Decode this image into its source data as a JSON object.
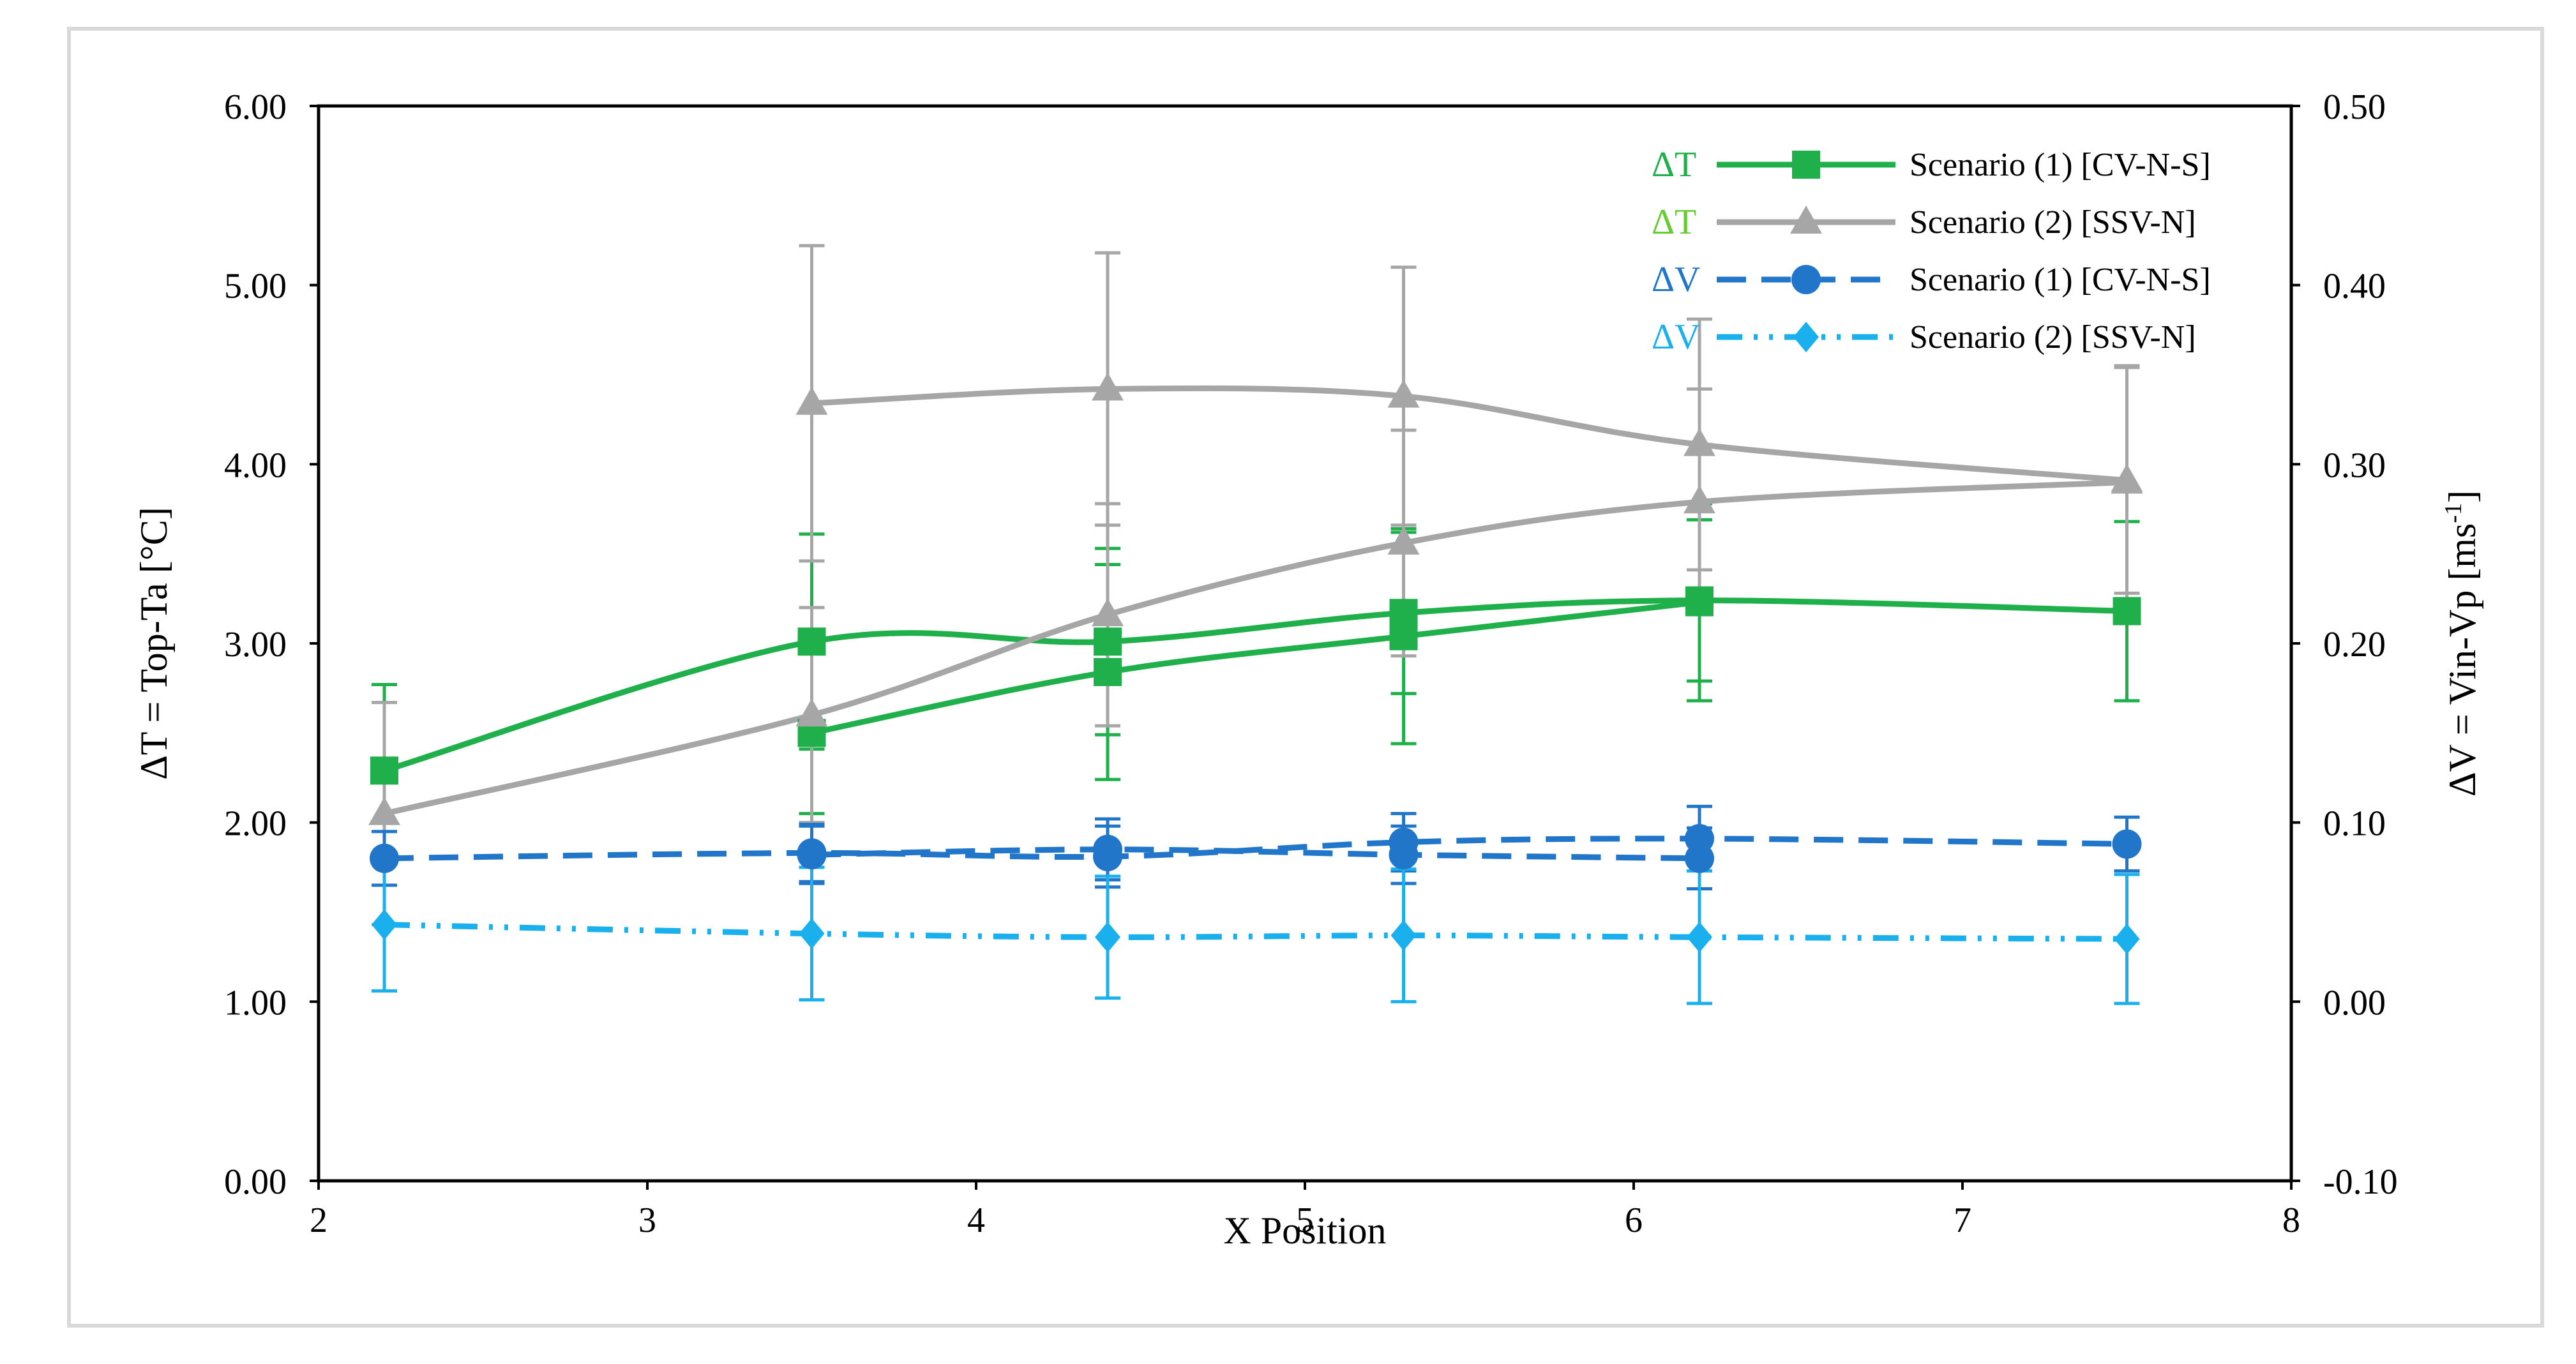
{
  "chart_data": {
    "type": "line",
    "title": "",
    "xlabel": "X Position",
    "ylabel_left": "ΔT = Top-Ta [°C]",
    "ylabel_right_main": "ΔV = Vin-Vp [ms",
    "ylabel_right_sup": "-1",
    "ylabel_right_end": "]",
    "xlim": [
      2,
      8
    ],
    "ylim_left": [
      0,
      6
    ],
    "ylim_right": [
      -0.1,
      0.5
    ],
    "x_ticks": [
      "2",
      "3",
      "4",
      "5",
      "6",
      "7",
      "8"
    ],
    "y_left_ticks": [
      "0.00",
      "1.00",
      "2.00",
      "3.00",
      "4.00",
      "5.00",
      "6.00"
    ],
    "y_right_ticks": [
      "-0.10",
      "0.00",
      "0.10",
      "0.20",
      "0.30",
      "0.40",
      "0.50"
    ],
    "grid": false,
    "legend_position": "top-right",
    "series": [
      {
        "name": "Scenario (1) [CV-N-S]",
        "prefix": "ΔT",
        "axis": "left",
        "color": "#1fb04b",
        "prefix_color": "#1fb04b",
        "marker": "square",
        "dash": "solid",
        "lines": [
          {
            "x": [
              2.2,
              3.5,
              4.4,
              5.3,
              6.2,
              7.5
            ],
            "y": [
              2.29,
              3.01,
              3.01,
              3.17,
              3.24,
              3.18
            ],
            "err": [
              0.48,
              0.6,
              0.52,
              0.45,
              0.45,
              0.5
            ]
          },
          {
            "x": [
              3.5,
              4.4,
              5.3,
              6.2
            ],
            "y": [
              2.5,
              2.84,
              3.04,
              3.23
            ],
            "err": [
              0.45,
              0.6,
              0.6,
              0.55
            ]
          }
        ]
      },
      {
        "name": "Scenario (2) [SSV-N]",
        "prefix": "ΔT",
        "axis": "left",
        "color": "#a6a6a6",
        "prefix_color": "#66cc33",
        "marker": "triangle",
        "dash": "solid",
        "lines": [
          {
            "x": [
              3.5,
              4.4,
              5.3,
              6.2,
              7.5
            ],
            "y": [
              4.34,
              4.42,
              4.38,
              4.11,
              3.91
            ],
            "err": [
              0.88,
              0.76,
              0.72,
              0.7,
              0.63
            ]
          },
          {
            "x": [
              2.2,
              3.5,
              4.4,
              5.3,
              6.2,
              7.5
            ],
            "y": [
              2.05,
              2.6,
              3.16,
              3.56,
              3.79,
              3.9
            ],
            "err": [
              0.62,
              0.6,
              0.62,
              0.63,
              0.63,
              0.65
            ]
          }
        ]
      },
      {
        "name": "Scenario (1) [CV-N-S]",
        "prefix": "ΔV",
        "axis": "right",
        "color": "#2176c9",
        "prefix_color": "#2176c9",
        "marker": "circle",
        "dash": "dashed",
        "lines": [
          {
            "x": [
              2.2,
              3.5,
              4.4,
              5.3,
              6.2,
              7.5
            ],
            "y": [
              0.08,
              0.083,
              0.081,
              0.089,
              0.091,
              0.088
            ],
            "err": [
              0.015,
              0.016,
              0.017,
              0.016,
              0.018,
              0.015
            ]
          },
          {
            "x": [
              3.5,
              4.4,
              5.3,
              6.2
            ],
            "y": [
              0.082,
              0.085,
              0.082,
              0.08
            ],
            "err": [
              0.016,
              0.017,
              0.016,
              0.017
            ]
          }
        ]
      },
      {
        "name": "Scenario (2) [SSV-N]",
        "prefix": "ΔV",
        "axis": "right",
        "color": "#1ab0ed",
        "prefix_color": "#1ab0ed",
        "marker": "diamond",
        "dash": "dashdot",
        "lines": [
          {
            "x": [
              2.2,
              3.5,
              4.4,
              5.3,
              6.2,
              7.5
            ],
            "y": [
              0.043,
              0.038,
              0.036,
              0.037,
              0.036,
              0.035
            ],
            "err": [
              0.037,
              0.037,
              0.034,
              0.037,
              0.037,
              0.036
            ]
          }
        ]
      }
    ]
  }
}
